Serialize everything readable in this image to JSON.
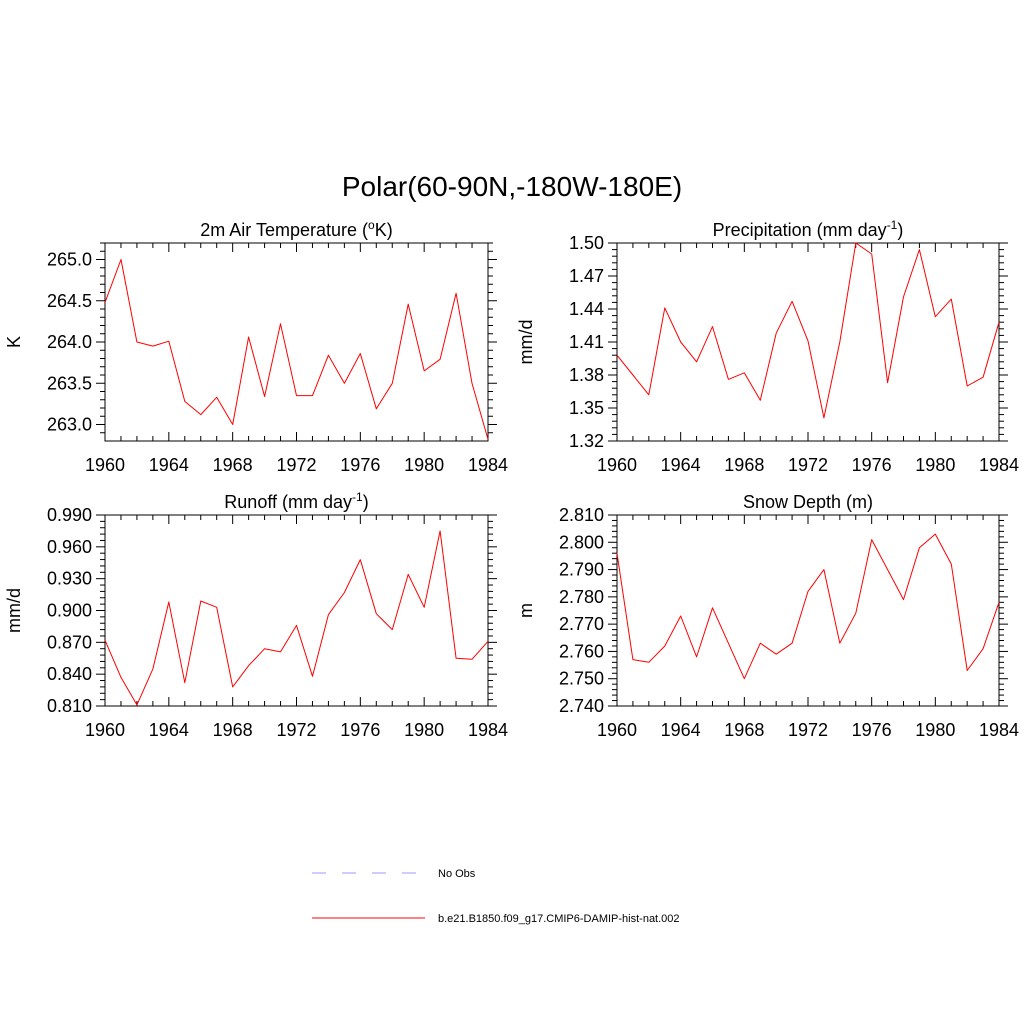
{
  "figure": {
    "title": "Polar(60-90N,-180W-180E)"
  },
  "colors": {
    "series_line": "#ff0000",
    "obs_line": "#9999ff",
    "axis": "#000000"
  },
  "legend": {
    "placement": "bottom-center",
    "entries": [
      {
        "label": "No Obs",
        "style": "dashed",
        "color": "#9999ff"
      },
      {
        "label": "b.e21.B1850.f09_g17.CMIP6-DAMIP-hist-nat.002",
        "style": "solid",
        "color": "#ff0000"
      }
    ]
  },
  "chart_data": [
    {
      "type": "line",
      "title_main": "2m Air Temperature (",
      "title_sup": "o",
      "title_end": "K)",
      "ylabel": "K",
      "xlim": [
        1960,
        1984
      ],
      "ylim": [
        262.8,
        265.2
      ],
      "x_ticks": [
        "1960",
        "1964",
        "1968",
        "1972",
        "1976",
        "1980",
        "1984"
      ],
      "y_ticks": [
        "263.0",
        "263.5",
        "264.0",
        "264.5",
        "265.0"
      ],
      "x": [
        1960,
        1961,
        1962,
        1963,
        1964,
        1965,
        1966,
        1967,
        1968,
        1969,
        1970,
        1971,
        1972,
        1973,
        1974,
        1975,
        1976,
        1977,
        1978,
        1979,
        1980,
        1981,
        1982,
        1983,
        1984
      ],
      "series": [
        {
          "name": "b.e21.B1850.f09_g17.CMIP6-DAMIP-hist-nat.002",
          "values": [
            264.48,
            265.0,
            264.0,
            263.95,
            264.01,
            263.28,
            263.12,
            263.33,
            263.0,
            264.06,
            263.34,
            264.22,
            263.35,
            263.35,
            263.84,
            263.5,
            263.86,
            263.19,
            263.5,
            264.46,
            263.65,
            263.79,
            264.59,
            263.5,
            262.82
          ]
        }
      ]
    },
    {
      "type": "line",
      "title_main": "Precipitation (mm day",
      "title_sup": "-1",
      "title_end": ")",
      "ylabel": "mm/d",
      "xlim": [
        1960,
        1984
      ],
      "ylim": [
        1.32,
        1.5
      ],
      "x_ticks": [
        "1960",
        "1964",
        "1968",
        "1972",
        "1976",
        "1980",
        "1984"
      ],
      "y_ticks": [
        "1.32",
        "1.35",
        "1.38",
        "1.41",
        "1.44",
        "1.47",
        "1.50"
      ],
      "x": [
        1960,
        1961,
        1962,
        1963,
        1964,
        1965,
        1966,
        1967,
        1968,
        1969,
        1970,
        1971,
        1972,
        1973,
        1974,
        1975,
        1976,
        1977,
        1978,
        1979,
        1980,
        1981,
        1982,
        1983,
        1984
      ],
      "series": [
        {
          "name": "b.e21.B1850.f09_g17.CMIP6-DAMIP-hist-nat.002",
          "values": [
            1.398,
            1.38,
            1.362,
            1.441,
            1.41,
            1.392,
            1.424,
            1.376,
            1.382,
            1.357,
            1.418,
            1.447,
            1.411,
            1.341,
            1.41,
            1.5,
            1.49,
            1.373,
            1.451,
            1.494,
            1.433,
            1.449,
            1.37,
            1.378,
            1.428
          ]
        }
      ]
    },
    {
      "type": "line",
      "title_main": "Runoff (mm day",
      "title_sup": "-1",
      "title_end": ")",
      "ylabel": "mm/d",
      "xlim": [
        1960,
        1984
      ],
      "ylim": [
        0.81,
        0.99
      ],
      "x_ticks": [
        "1960",
        "1964",
        "1968",
        "1972",
        "1976",
        "1980",
        "1984"
      ],
      "y_ticks": [
        "0.810",
        "0.840",
        "0.870",
        "0.900",
        "0.930",
        "0.960",
        "0.990"
      ],
      "x": [
        1960,
        1961,
        1962,
        1963,
        1964,
        1965,
        1966,
        1967,
        1968,
        1969,
        1970,
        1971,
        1972,
        1973,
        1974,
        1975,
        1976,
        1977,
        1978,
        1979,
        1980,
        1981,
        1982,
        1983,
        1984
      ],
      "series": [
        {
          "name": "b.e21.B1850.f09_g17.CMIP6-DAMIP-hist-nat.002",
          "values": [
            0.872,
            0.837,
            0.811,
            0.845,
            0.908,
            0.832,
            0.909,
            0.903,
            0.828,
            0.848,
            0.864,
            0.861,
            0.886,
            0.838,
            0.896,
            0.917,
            0.948,
            0.897,
            0.882,
            0.934,
            0.903,
            0.975,
            0.855,
            0.854,
            0.871
          ]
        }
      ]
    },
    {
      "type": "line",
      "title_main": "Snow Depth (m)",
      "title_sup": "",
      "title_end": "",
      "ylabel": "m",
      "xlim": [
        1960,
        1984
      ],
      "ylim": [
        2.74,
        2.81
      ],
      "x_ticks": [
        "1960",
        "1964",
        "1968",
        "1972",
        "1976",
        "1980",
        "1984"
      ],
      "y_ticks": [
        "2.740",
        "2.750",
        "2.760",
        "2.770",
        "2.780",
        "2.790",
        "2.800",
        "2.810"
      ],
      "x": [
        1960,
        1961,
        1962,
        1963,
        1964,
        1965,
        1966,
        1967,
        1968,
        1969,
        1970,
        1971,
        1972,
        1973,
        1974,
        1975,
        1976,
        1977,
        1978,
        1979,
        1980,
        1981,
        1982,
        1983,
        1984
      ],
      "series": [
        {
          "name": "b.e21.B1850.f09_g17.CMIP6-DAMIP-hist-nat.002",
          "values": [
            2.796,
            2.757,
            2.756,
            2.762,
            2.773,
            2.758,
            2.776,
            2.763,
            2.75,
            2.763,
            2.759,
            2.763,
            2.782,
            2.79,
            2.763,
            2.774,
            2.801,
            2.79,
            2.779,
            2.798,
            2.803,
            2.792,
            2.753,
            2.761,
            2.778
          ]
        }
      ]
    }
  ]
}
